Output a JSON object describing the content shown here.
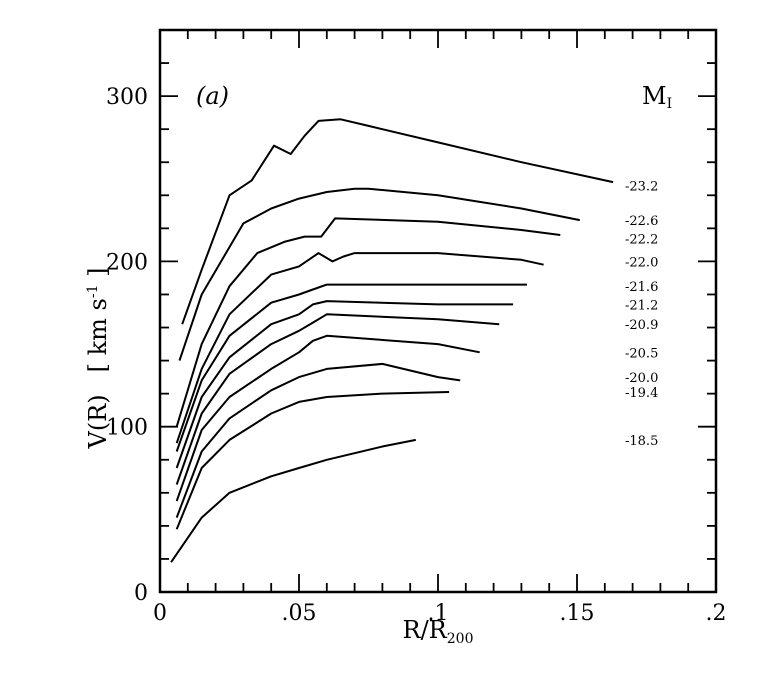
{
  "chart_data": {
    "type": "line",
    "panel_label": "(a)",
    "legend_title": "M",
    "legend_title_sub": "I",
    "xlabel": "R/R",
    "xlabel_sub": "200",
    "ylabel": "V(R)",
    "ylabel_units": "[ km s",
    "ylabel_units_sup": "-1",
    "ylabel_units_end": " ]",
    "xlim": [
      0,
      0.2
    ],
    "ylim": [
      0,
      340
    ],
    "x_ticks": [
      {
        "value": 0,
        "label": "0"
      },
      {
        "value": 0.05,
        "label": ".05"
      },
      {
        "value": 0.1,
        "label": ".1"
      },
      {
        "value": 0.15,
        "label": ".15"
      },
      {
        "value": 0.2,
        "label": ".2"
      }
    ],
    "y_ticks": [
      {
        "value": 0,
        "label": "0"
      },
      {
        "value": 100,
        "label": "100"
      },
      {
        "value": 200,
        "label": "200"
      },
      {
        "value": 300,
        "label": "300"
      }
    ],
    "series": [
      {
        "name": "-23.2",
        "label_y": 246,
        "x": [
          0.008,
          0.015,
          0.025,
          0.033,
          0.041,
          0.047,
          0.052,
          0.057,
          0.065,
          0.075,
          0.1,
          0.13,
          0.163
        ],
        "y": [
          162,
          195,
          240,
          249,
          270,
          265,
          276,
          285,
          286,
          282,
          272,
          260,
          248
        ]
      },
      {
        "name": "-22.6",
        "label_y": 225,
        "x": [
          0.007,
          0.015,
          0.03,
          0.04,
          0.05,
          0.06,
          0.07,
          0.075,
          0.1,
          0.13,
          0.151
        ],
        "y": [
          140,
          180,
          223,
          232,
          238,
          242,
          244,
          244,
          240,
          232,
          225
        ]
      },
      {
        "name": "-22.2",
        "label_y": 214,
        "x": [
          0.006,
          0.015,
          0.025,
          0.035,
          0.045,
          0.052,
          0.058,
          0.063,
          0.1,
          0.13,
          0.144
        ],
        "y": [
          100,
          150,
          185,
          205,
          212,
          215,
          215,
          226,
          224,
          219,
          216
        ]
      },
      {
        "name": "-22.0",
        "label_y": 200,
        "x": [
          0.006,
          0.015,
          0.025,
          0.04,
          0.05,
          0.057,
          0.062,
          0.066,
          0.07,
          0.1,
          0.13,
          0.138
        ],
        "y": [
          90,
          135,
          168,
          192,
          197,
          205,
          200,
          203,
          205,
          205,
          201,
          198
        ]
      },
      {
        "name": "-21.6",
        "label_y": 185,
        "x": [
          0.006,
          0.015,
          0.025,
          0.04,
          0.05,
          0.055,
          0.06,
          0.1,
          0.132
        ],
        "y": [
          85,
          128,
          155,
          175,
          180,
          183,
          186,
          186,
          186
        ]
      },
      {
        "name": "-21.2",
        "label_y": 174,
        "x": [
          0.006,
          0.015,
          0.025,
          0.04,
          0.05,
          0.055,
          0.06,
          0.1,
          0.127
        ],
        "y": [
          75,
          118,
          142,
          162,
          168,
          174,
          176,
          174,
          174
        ]
      },
      {
        "name": "-20.9",
        "label_y": 162,
        "x": [
          0.006,
          0.015,
          0.025,
          0.04,
          0.05,
          0.055,
          0.06,
          0.1,
          0.122
        ],
        "y": [
          65,
          108,
          132,
          150,
          158,
          163,
          168,
          165,
          162
        ]
      },
      {
        "name": "-20.5",
        "label_y": 145,
        "x": [
          0.006,
          0.015,
          0.025,
          0.04,
          0.05,
          0.055,
          0.06,
          0.1,
          0.115
        ],
        "y": [
          55,
          98,
          118,
          135,
          145,
          152,
          155,
          150,
          145
        ]
      },
      {
        "name": "-20.0",
        "label_y": 130,
        "x": [
          0.006,
          0.015,
          0.025,
          0.04,
          0.05,
          0.06,
          0.08,
          0.1,
          0.108
        ],
        "y": [
          45,
          85,
          105,
          122,
          130,
          135,
          138,
          130,
          128
        ]
      },
      {
        "name": "-19.4",
        "label_y": 121,
        "x": [
          0.006,
          0.015,
          0.025,
          0.04,
          0.05,
          0.06,
          0.08,
          0.104
        ],
        "y": [
          38,
          75,
          92,
          108,
          115,
          118,
          120,
          121
        ]
      },
      {
        "name": "-18.5",
        "label_y": 92,
        "x": [
          0.004,
          0.015,
          0.025,
          0.04,
          0.05,
          0.06,
          0.08,
          0.092
        ],
        "y": [
          18,
          45,
          60,
          70,
          75,
          80,
          88,
          92
        ]
      }
    ]
  }
}
